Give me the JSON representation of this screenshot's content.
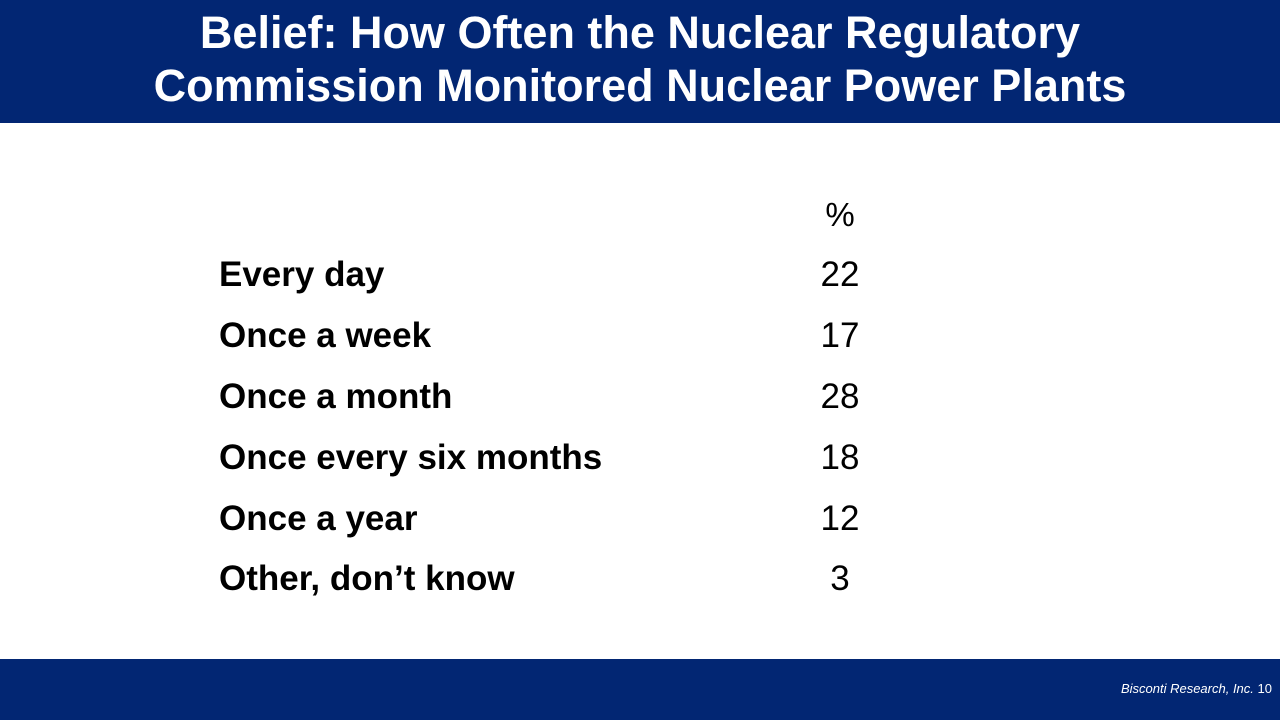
{
  "slide": {
    "title_lines": [
      "Belief: How Often the Nuclear Regulatory",
      "Commission Monitored Nuclear Power Plants"
    ],
    "table": {
      "column_header": "%",
      "rows": [
        {
          "label": "Every day",
          "value": "22"
        },
        {
          "label": "Once a week",
          "value": "17"
        },
        {
          "label": "Once a month",
          "value": "28"
        },
        {
          "label": "Once every six months",
          "value": "18"
        },
        {
          "label": "Once a year",
          "value": "12"
        },
        {
          "label": "Other, don’t know",
          "value": "3"
        }
      ]
    },
    "footer": {
      "organization": "Bisconti Research, Inc.",
      "page_number": "10"
    },
    "colors": {
      "banner": "#022673",
      "title_text": "#ffffff",
      "body_text": "#000000"
    }
  }
}
